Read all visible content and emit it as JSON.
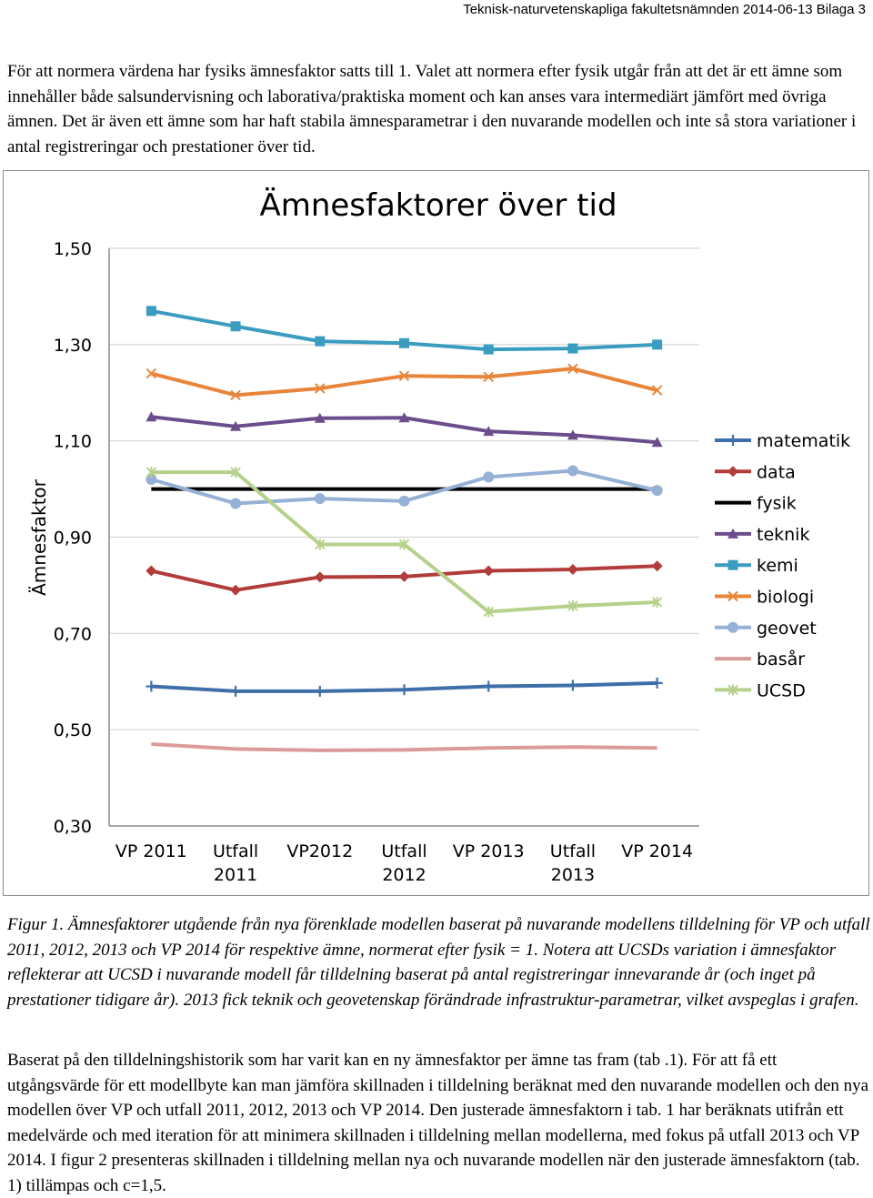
{
  "header": {
    "text": "Teknisk-naturvetenskapliga fakultetsnämnden 2014-06-13 Bilaga 3"
  },
  "intro": {
    "text": "För att normera värdena har fysiks ämnesfaktor satts till 1. Valet att normera efter fysik utgår från att det är ett ämne som innehåller både salsundervisning och laborativa/praktiska moment och kan anses vara intermediärt jämfört med övriga ämnen. Det är även ett ämne som har haft stabila ämnesparametrar i den nuvarande modellen och inte så stora variationer i antal registreringar och prestationer över tid."
  },
  "chart_data": {
    "type": "line",
    "title": "Ämnesfaktorer över tid",
    "ylabel": "Ämnesfaktor",
    "xlabel": "",
    "ylim": [
      0.3,
      1.5
    ],
    "yticks": [
      "1,50",
      "1,30",
      "1,10",
      "0,90",
      "0,70",
      "0,50",
      "0,30"
    ],
    "ytick_values": [
      1.5,
      1.3,
      1.1,
      0.9,
      0.7,
      0.5,
      0.3
    ],
    "categories": [
      [
        "VP 2011"
      ],
      [
        "Utfall",
        "2011"
      ],
      [
        "VP2012"
      ],
      [
        "Utfall",
        "2012"
      ],
      [
        "VP 2013"
      ],
      [
        "Utfall",
        "2013"
      ],
      [
        "VP 2014"
      ]
    ],
    "legend_position": "right",
    "series": [
      {
        "name": "matematik",
        "color": "#3f6fa8",
        "marker": "plus",
        "values": [
          0.59,
          0.58,
          0.58,
          0.583,
          0.59,
          0.592,
          0.597
        ]
      },
      {
        "name": "data",
        "color": "#b23c3a",
        "marker": "diamond",
        "values": [
          0.83,
          0.79,
          0.817,
          0.818,
          0.83,
          0.833,
          0.84
        ]
      },
      {
        "name": "fysik",
        "color": "#000000",
        "marker": "none",
        "values": [
          1.0,
          1.0,
          1.0,
          1.0,
          1.0,
          1.0,
          1.0
        ]
      },
      {
        "name": "teknik",
        "color": "#6c4d8c",
        "marker": "triangle",
        "values": [
          1.15,
          1.13,
          1.147,
          1.148,
          1.12,
          1.112,
          1.097
        ]
      },
      {
        "name": "kemi",
        "color": "#3a9cbf",
        "marker": "square",
        "values": [
          1.37,
          1.338,
          1.307,
          1.303,
          1.29,
          1.292,
          1.3
        ]
      },
      {
        "name": "biologi",
        "color": "#e8853a",
        "marker": "x",
        "values": [
          1.24,
          1.195,
          1.209,
          1.235,
          1.233,
          1.25,
          1.205
        ]
      },
      {
        "name": "geovet",
        "color": "#96b1d6",
        "marker": "circle",
        "values": [
          1.02,
          0.97,
          0.98,
          0.975,
          1.025,
          1.038,
          0.997
        ]
      },
      {
        "name": "basår",
        "color": "#dd9a9a",
        "marker": "none",
        "values": [
          0.47,
          0.46,
          0.457,
          0.458,
          0.462,
          0.464,
          0.462
        ]
      },
      {
        "name": "UCSD",
        "color": "#b5d18b",
        "marker": "star",
        "values": [
          1.035,
          1.035,
          0.885,
          0.885,
          0.745,
          0.757,
          0.765
        ]
      }
    ]
  },
  "caption": {
    "text": "Figur 1. Ämnesfaktorer utgående från nya förenklade modellen baserat på nuvarande modellens tilldelning för VP och utfall 2011, 2012, 2013 och VP 2014 för respektive ämne, normerat efter fysik = 1. Notera att UCSDs variation i ämnesfaktor reflekterar att UCSD i nuvarande modell får tilldelning baserat på antal registreringar innevarande år (och inget på prestationer tidigare år). 2013 fick teknik och geovetenskap förändrade infrastruktur-parametrar, vilket avspeglas i grafen."
  },
  "body": {
    "text": "Baserat på den tilldelningshistorik som har varit kan en ny ämnesfaktor per ämne tas fram (tab .1). För att få ett utgångsvärde för ett modellbyte kan man jämföra skillnaden i tilldelning beräknat med den nuvarande modellen och den nya modellen över VP och utfall 2011, 2012, 2013 och VP 2014. Den justerade ämnesfaktorn i tab. 1 har beräknats utifrån ett medelvärde och med iteration för att minimera skillnaden i tilldelning mellan modellerna, med fokus på utfall 2013 och VP 2014. I figur 2 presenteras skillnaden i tilldelning mellan nya och nuvarande modellen när den justerade ämnesfaktorn (tab. 1) tillämpas och c=1,5."
  }
}
